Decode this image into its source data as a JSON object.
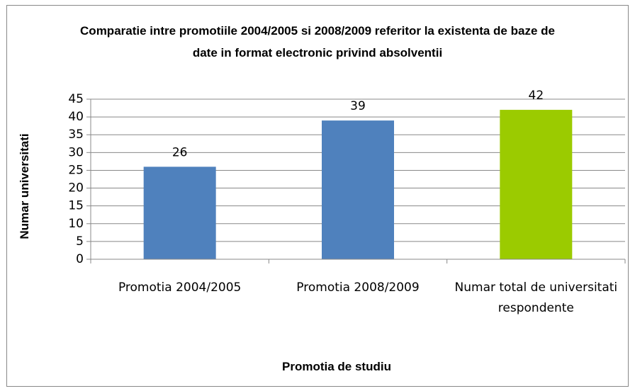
{
  "chart_data": {
    "type": "bar",
    "title": "Comparatie intre promotiile 2004/2005 si 2008/2009 referitor la existenta de baze de date in format electronic privind absolventii",
    "x_label": "Promotia de studiu",
    "y_label": "Numar universitati",
    "categories": [
      "Promotia 2004/2005",
      "Promotia 2008/2009",
      "Numar total de universitati respondente"
    ],
    "values": [
      26,
      39,
      42
    ],
    "colors": [
      "#4f81bd",
      "#4f81bd",
      "#9bcb00"
    ],
    "ylim": [
      0,
      45
    ],
    "yticks": [
      0,
      5,
      10,
      15,
      20,
      25,
      30,
      35,
      40,
      45
    ],
    "grid": true
  }
}
